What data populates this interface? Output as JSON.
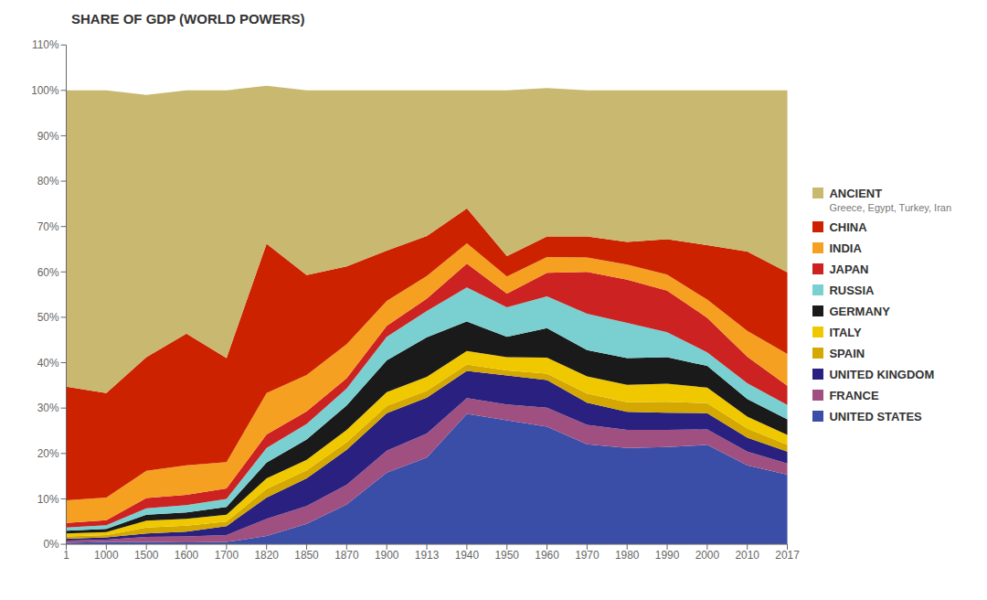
{
  "chart_data": {
    "type": "area",
    "title": "SHARE OF GDP (WORLD POWERS)",
    "stacked": true,
    "grid": false,
    "legend": "right",
    "categories": [
      "1",
      "1000",
      "1500",
      "1600",
      "1700",
      "1820",
      "1850",
      "1870",
      "1900",
      "1913",
      "1940",
      "1950",
      "1960",
      "1970",
      "1980",
      "1990",
      "2000",
      "2010",
      "2017"
    ],
    "series": [
      {
        "name": "UNITED STATES",
        "color": "#3a4ea8",
        "values": [
          0.3,
          0.5,
          0.5,
          0.4,
          0.5,
          1.8,
          4.5,
          8.8,
          15.8,
          19.1,
          28.7,
          27.3,
          25.9,
          22.0,
          21.2,
          21.4,
          21.9,
          17.4,
          15.3
        ]
      },
      {
        "name": "FRANCE",
        "color": "#a05080",
        "values": [
          0.5,
          0.5,
          1.1,
          1.3,
          1.5,
          3.8,
          3.9,
          4.3,
          4.8,
          5.3,
          3.5,
          3.5,
          4.2,
          4.3,
          4.0,
          3.8,
          3.4,
          3.0,
          2.5
        ]
      },
      {
        "name": "UNITED KINGDOM",
        "color": "#2a2080",
        "values": [
          0.4,
          0.5,
          0.8,
          1.1,
          2.0,
          4.7,
          6.1,
          7.7,
          8.3,
          7.9,
          6.0,
          6.4,
          6.1,
          4.9,
          4.0,
          3.8,
          3.6,
          3.1,
          2.6
        ]
      },
      {
        "name": "SPAIN",
        "color": "#d4a800",
        "values": [
          0.5,
          0.5,
          1.3,
          1.3,
          1.0,
          1.9,
          1.8,
          1.7,
          1.6,
          1.5,
          1.4,
          1.1,
          1.4,
          2.0,
          2.1,
          2.4,
          2.2,
          2.0,
          1.5
        ]
      },
      {
        "name": "ITALY",
        "color": "#f0c800",
        "values": [
          0.7,
          0.7,
          1.5,
          1.5,
          1.5,
          2.3,
          2.3,
          2.7,
          3.0,
          3.1,
          3.0,
          2.9,
          3.5,
          3.8,
          3.8,
          4.0,
          3.4,
          2.6,
          2.2
        ]
      },
      {
        "name": "GERMANY",
        "color": "#1a1a1a",
        "values": [
          0.6,
          0.7,
          1.3,
          1.4,
          1.7,
          3.5,
          4.5,
          5.4,
          7.0,
          8.7,
          6.5,
          4.5,
          6.5,
          5.8,
          5.9,
          5.8,
          4.8,
          3.9,
          3.4
        ]
      },
      {
        "name": "RUSSIA",
        "color": "#7ad0d0",
        "values": [
          0.7,
          0.8,
          1.4,
          1.6,
          1.8,
          3.2,
          3.4,
          3.7,
          5.2,
          5.8,
          7.5,
          6.5,
          7.0,
          8.0,
          7.8,
          5.5,
          3.0,
          3.5,
          3.2
        ]
      },
      {
        "name": "JAPAN",
        "color": "#cc2222",
        "values": [
          1.0,
          1.1,
          2.3,
          2.3,
          2.3,
          3.0,
          2.8,
          2.3,
          2.4,
          2.7,
          5.2,
          3.0,
          5.2,
          9.2,
          9.5,
          9.2,
          7.6,
          5.8,
          4.2
        ]
      },
      {
        "name": "INDIA",
        "color": "#f5a020",
        "values": [
          5.0,
          5.0,
          6.0,
          6.5,
          5.8,
          9.1,
          8.0,
          7.5,
          5.5,
          5.0,
          4.5,
          3.8,
          3.5,
          3.2,
          3.3,
          3.5,
          4.0,
          5.7,
          7.0
        ]
      },
      {
        "name": "CHINA",
        "color": "#cc2200",
        "values": [
          25.0,
          23.0,
          25.0,
          29.0,
          22.9,
          32.9,
          22.0,
          17.1,
          11.1,
          8.8,
          7.7,
          4.5,
          4.5,
          4.6,
          5.0,
          7.8,
          12.0,
          17.5,
          18.0
        ]
      },
      {
        "name": "ANCIENT",
        "color": "#c8b870",
        "values": [
          65.3,
          66.7,
          57.8,
          53.6,
          59.0,
          34.8,
          40.7,
          38.8,
          35.3,
          32.1,
          26.0,
          36.5,
          32.7,
          32.2,
          33.4,
          32.8,
          34.1,
          35.5,
          40.1
        ]
      }
    ],
    "annotations": [
      "Greece, Egypt, Turkey, Iran"
    ],
    "ylim": [
      0,
      110
    ],
    "yticks": [
      {
        "value": 0,
        "label": "0%"
      },
      {
        "value": 10,
        "label": "10%"
      },
      {
        "value": 20,
        "label": "20%"
      },
      {
        "value": 30,
        "label": "30%"
      },
      {
        "value": 40,
        "label": "40%"
      },
      {
        "value": 50,
        "label": "50%"
      },
      {
        "value": 60,
        "label": "60%"
      },
      {
        "value": 70,
        "label": "70%"
      },
      {
        "value": 80,
        "label": "80%"
      },
      {
        "value": 90,
        "label": "90%"
      },
      {
        "value": 100,
        "label": "100%"
      },
      {
        "value": 110,
        "label": "110%"
      }
    ]
  }
}
